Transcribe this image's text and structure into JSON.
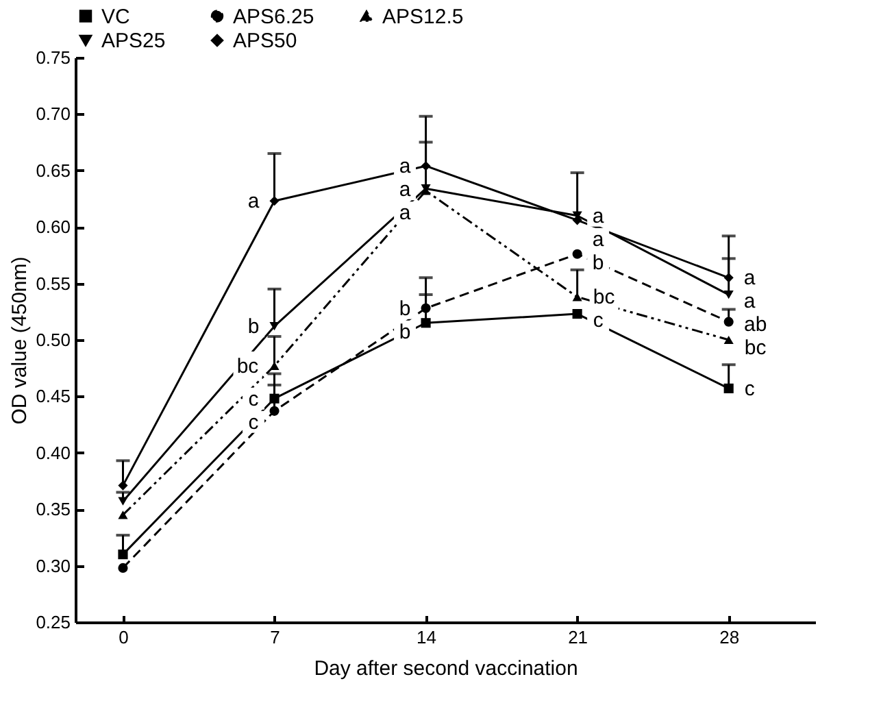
{
  "chart_data": {
    "type": "line",
    "xlabel": "Day after second vaccination",
    "ylabel": "OD value (450nm)",
    "x": [
      0,
      7,
      14,
      21,
      28
    ],
    "xlim": [
      -2.2,
      32
    ],
    "xticks": [
      0,
      7,
      14,
      21,
      28
    ],
    "ylim": [
      0.25,
      0.75
    ],
    "yticks": [
      {
        "value": 0.25,
        "label": "0.25"
      },
      {
        "value": 0.3,
        "label": "0.30"
      },
      {
        "value": 0.35,
        "label": "0.35"
      },
      {
        "value": 0.4,
        "label": "0.40"
      },
      {
        "value": 0.45,
        "label": "0.45"
      },
      {
        "value": 0.5,
        "label": "0.50"
      },
      {
        "value": 0.55,
        "label": "0.55"
      },
      {
        "value": 0.6,
        "label": "0.60"
      },
      {
        "value": 0.65,
        "label": "0.65"
      },
      {
        "value": 0.7,
        "label": "0.70"
      },
      {
        "value": 0.75,
        "label": "0.75"
      }
    ],
    "legend": "top",
    "grid": false,
    "series": [
      {
        "name": "VC",
        "color": "#000000",
        "marker": "square",
        "line_style": "solid",
        "values": [
          0.31,
          0.448,
          0.515,
          0.523,
          0.457
        ],
        "errors": [
          [
            0.31,
            0.327
          ],
          [
            0.448,
            0.47
          ],
          [
            0.515,
            0.54
          ],
          null,
          [
            0.457,
            0.478
          ]
        ]
      },
      {
        "name": "APS6.25",
        "color": "#000000",
        "marker": "circle",
        "line_style": "dashed",
        "values": [
          0.298,
          0.437,
          0.528,
          0.576,
          0.516
        ],
        "errors": [
          null,
          [
            0.437,
            0.46
          ],
          [
            0.528,
            0.555
          ],
          null,
          [
            0.516,
            0.527
          ]
        ]
      },
      {
        "name": "APS12.5",
        "color": "#000000",
        "marker": "triangle",
        "line_style": "dashdot",
        "values": [
          0.345,
          0.477,
          0.632,
          0.538,
          0.5
        ],
        "errors": [
          null,
          [
            0.477,
            0.503
          ],
          null,
          [
            0.538,
            0.562
          ],
          null
        ]
      },
      {
        "name": "APS25",
        "color": "#000000",
        "marker": "triangle-down",
        "line_style": "solid",
        "values": [
          0.357,
          0.512,
          0.634,
          0.61,
          0.54
        ],
        "errors": [
          [
            0.357,
            0.365
          ],
          [
            0.512,
            0.545
          ],
          [
            0.634,
            0.675
          ],
          [
            0.61,
            0.648
          ],
          [
            0.54,
            0.572
          ]
        ]
      },
      {
        "name": "APS50",
        "color": "#000000",
        "marker": "diamond",
        "line_style": "solid",
        "values": [
          0.371,
          0.623,
          0.654,
          0.606,
          0.555
        ],
        "errors": [
          [
            0.371,
            0.393
          ],
          [
            0.623,
            0.665
          ],
          [
            0.654,
            0.698
          ],
          null,
          [
            0.555,
            0.592
          ]
        ]
      }
    ],
    "annotations": [
      {
        "text": "a",
        "x": 7,
        "y": 0.623
      },
      {
        "text": "b",
        "x": 7,
        "y": 0.512
      },
      {
        "text": "bc",
        "x": 7,
        "y": 0.477
      },
      {
        "text": "c",
        "x": 7,
        "y": 0.448
      },
      {
        "text": "c",
        "x": 7,
        "y": 0.437
      },
      {
        "text": "a",
        "x": 14,
        "y": 0.654
      },
      {
        "text": "a",
        "x": 14,
        "y": 0.634
      },
      {
        "text": "a",
        "x": 14,
        "y": 0.632
      },
      {
        "text": "b",
        "x": 14,
        "y": 0.528
      },
      {
        "text": "b",
        "x": 14,
        "y": 0.515
      },
      {
        "text": "a",
        "x": 21,
        "y": 0.61
      },
      {
        "text": "a",
        "x": 21,
        "y": 0.606
      },
      {
        "text": "b",
        "x": 21,
        "y": 0.576
      },
      {
        "text": "bc",
        "x": 21,
        "y": 0.538
      },
      {
        "text": "c",
        "x": 21,
        "y": 0.523
      },
      {
        "text": "a",
        "x": 28,
        "y": 0.555
      },
      {
        "text": "a",
        "x": 28,
        "y": 0.54
      },
      {
        "text": "ab",
        "x": 28,
        "y": 0.516
      },
      {
        "text": "bc",
        "x": 28,
        "y": 0.5
      },
      {
        "text": "c",
        "x": 28,
        "y": 0.457
      }
    ]
  }
}
